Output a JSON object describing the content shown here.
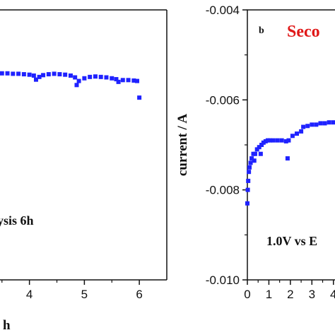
{
  "colors": {
    "series": "#1f22ff",
    "title_red": "#e01818",
    "axis": "#111111"
  },
  "chart_data": [
    {
      "type": "scatter",
      "panel": "a",
      "xlabel": "h",
      "ylabel": "",
      "annotation": "ysis 6h",
      "xlim": [
        3.4,
        6.5
      ],
      "ylim": [
        -0.01,
        -0.004
      ],
      "x_ticks": [
        4,
        5,
        6
      ],
      "x_tick_labels": [
        "4",
        "5",
        "6"
      ],
      "series": [
        {
          "points": [
            [
              3.4,
              -0.0054
            ],
            [
              3.5,
              -0.00541
            ],
            [
              3.6,
              -0.00541
            ],
            [
              3.7,
              -0.00542
            ],
            [
              3.8,
              -0.00542
            ],
            [
              3.9,
              -0.00543
            ],
            [
              4.0,
              -0.00544
            ],
            [
              4.08,
              -0.00546
            ],
            [
              4.12,
              -0.00555
            ],
            [
              4.18,
              -0.00549
            ],
            [
              4.25,
              -0.00545
            ],
            [
              4.35,
              -0.00543
            ],
            [
              4.45,
              -0.00542
            ],
            [
              4.55,
              -0.00543
            ],
            [
              4.65,
              -0.00544
            ],
            [
              4.75,
              -0.00546
            ],
            [
              4.83,
              -0.0055
            ],
            [
              4.86,
              -0.00567
            ],
            [
              4.9,
              -0.00558
            ],
            [
              5.0,
              -0.00552
            ],
            [
              5.1,
              -0.00549
            ],
            [
              5.2,
              -0.00548
            ],
            [
              5.3,
              -0.00549
            ],
            [
              5.4,
              -0.0055
            ],
            [
              5.5,
              -0.00552
            ],
            [
              5.58,
              -0.00554
            ],
            [
              5.62,
              -0.0056
            ],
            [
              5.7,
              -0.00556
            ],
            [
              5.8,
              -0.00556
            ],
            [
              5.9,
              -0.00557
            ],
            [
              5.96,
              -0.00558
            ],
            [
              6.0,
              -0.00595
            ]
          ]
        }
      ]
    },
    {
      "type": "scatter",
      "panel": "b",
      "panel_letter": "b",
      "title": "Seco",
      "xlabel": "",
      "ylabel": "current / A",
      "annotation": "1.0V vs E",
      "xlim": [
        0,
        4.6
      ],
      "ylim": [
        -0.01,
        -0.004
      ],
      "x_ticks": [
        0,
        1,
        2,
        3,
        4
      ],
      "x_tick_labels": [
        "0",
        "1",
        "2",
        "3",
        "4"
      ],
      "y_ticks": [
        -0.004,
        -0.006,
        -0.008,
        -0.01
      ],
      "y_tick_labels": [
        "-0.004",
        "-0.006",
        "-0.008",
        "-0.010"
      ],
      "series": [
        {
          "points": [
            [
              0.0,
              -0.0083
            ],
            [
              0.02,
              -0.008
            ],
            [
              0.04,
              -0.0078
            ],
            [
              0.07,
              -0.0076
            ],
            [
              0.1,
              -0.0075
            ],
            [
              0.15,
              -0.0074
            ],
            [
              0.2,
              -0.0073
            ],
            [
              0.28,
              -0.0072
            ],
            [
              0.32,
              -0.00735
            ],
            [
              0.36,
              -0.0072
            ],
            [
              0.45,
              -0.0071
            ],
            [
              0.55,
              -0.00705
            ],
            [
              0.62,
              -0.0072
            ],
            [
              0.66,
              -0.007
            ],
            [
              0.75,
              -0.00695
            ],
            [
              0.85,
              -0.00692
            ],
            [
              0.95,
              -0.0069
            ],
            [
              1.05,
              -0.0069
            ],
            [
              1.2,
              -0.0069
            ],
            [
              1.4,
              -0.0069
            ],
            [
              1.6,
              -0.0069
            ],
            [
              1.8,
              -0.00692
            ],
            [
              1.87,
              -0.0073
            ],
            [
              1.92,
              -0.0069
            ],
            [
              2.1,
              -0.0068
            ],
            [
              2.3,
              -0.00675
            ],
            [
              2.5,
              -0.0067
            ],
            [
              2.6,
              -0.0066
            ],
            [
              2.8,
              -0.00658
            ],
            [
              3.0,
              -0.00655
            ],
            [
              3.2,
              -0.00655
            ],
            [
              3.4,
              -0.00652
            ],
            [
              3.6,
              -0.00652
            ],
            [
              3.8,
              -0.0065
            ],
            [
              4.0,
              -0.0065
            ],
            [
              4.2,
              -0.0065
            ],
            [
              4.4,
              -0.00648
            ],
            [
              4.6,
              -0.00648
            ]
          ]
        }
      ]
    }
  ]
}
